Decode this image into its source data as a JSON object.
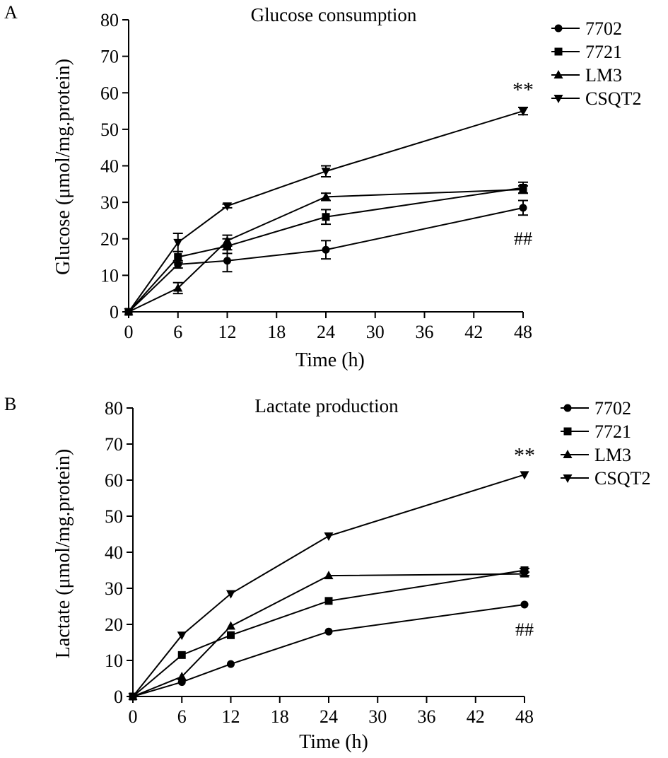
{
  "figure": {
    "colors": {
      "ink": "#000000",
      "background": "#ffffff"
    }
  },
  "chart_data": [
    {
      "panel_label": "A",
      "type": "line",
      "title": "Glucose consumption",
      "xlabel": "Time (h)",
      "ylabel": "Glucose (μmol/mg.protein)",
      "xlim": [
        0,
        48
      ],
      "ylim": [
        0,
        80
      ],
      "xticks": [
        0,
        6,
        12,
        18,
        24,
        30,
        36,
        42,
        48
      ],
      "yticks": [
        0,
        10,
        20,
        30,
        40,
        50,
        60,
        70,
        80
      ],
      "grid": false,
      "legend": "top-right",
      "x": [
        0,
        6,
        12,
        24,
        48
      ],
      "series": [
        {
          "name": "7702",
          "marker": "circle",
          "values": [
            0,
            13,
            14,
            17,
            28.5
          ],
          "errors": [
            0,
            1,
            3,
            2.5,
            2
          ]
        },
        {
          "name": "7721",
          "marker": "square",
          "values": [
            0,
            15,
            18,
            26,
            34
          ],
          "errors": [
            0,
            1.5,
            2,
            2,
            1.5
          ]
        },
        {
          "name": "LM3",
          "marker": "triangle-up",
          "values": [
            0,
            6.5,
            19.5,
            31.5,
            33.5
          ],
          "errors": [
            0,
            1.5,
            1.5,
            1,
            1
          ]
        },
        {
          "name": "CSQT2",
          "marker": "triangle-down",
          "values": [
            0,
            19,
            29,
            38.5,
            55
          ],
          "errors": [
            0,
            2.5,
            0.5,
            1.5,
            1
          ]
        }
      ],
      "annotations": [
        {
          "text": "**",
          "x": 48,
          "y": 59,
          "anchor": "above"
        },
        {
          "text": "##",
          "x": 48,
          "y": 21.5,
          "anchor": "below"
        }
      ]
    },
    {
      "panel_label": "B",
      "type": "line",
      "title": "Lactate production",
      "xlabel": "Time (h)",
      "ylabel": "Lactate (μmol/mg.protein)",
      "xlim": [
        0,
        48
      ],
      "ylim": [
        0,
        80
      ],
      "xticks": [
        0,
        6,
        12,
        18,
        24,
        30,
        36,
        42,
        48
      ],
      "yticks": [
        0,
        10,
        20,
        30,
        40,
        50,
        60,
        70,
        80
      ],
      "grid": false,
      "legend": "top-right",
      "x": [
        0,
        6,
        12,
        24,
        48
      ],
      "series": [
        {
          "name": "7702",
          "marker": "circle",
          "values": [
            0,
            4,
            9,
            18,
            25.5
          ],
          "errors": [
            0,
            0,
            0,
            0,
            0
          ]
        },
        {
          "name": "7721",
          "marker": "square",
          "values": [
            0,
            11.5,
            17,
            26.5,
            35
          ],
          "errors": [
            0,
            0,
            0,
            0,
            0.5
          ]
        },
        {
          "name": "LM3",
          "marker": "triangle-up",
          "values": [
            0,
            5.5,
            19.5,
            33.5,
            34
          ],
          "errors": [
            0,
            0,
            0,
            0,
            0.5
          ]
        },
        {
          "name": "CSQT2",
          "marker": "triangle-down",
          "values": [
            0,
            17,
            28.5,
            44.5,
            61.5
          ],
          "errors": [
            0,
            0,
            0,
            0,
            0
          ]
        }
      ],
      "annotations": [
        {
          "text": "**",
          "x": 48,
          "y": 65,
          "anchor": "above"
        },
        {
          "text": "##",
          "x": 48,
          "y": 20,
          "anchor": "below"
        }
      ]
    }
  ]
}
